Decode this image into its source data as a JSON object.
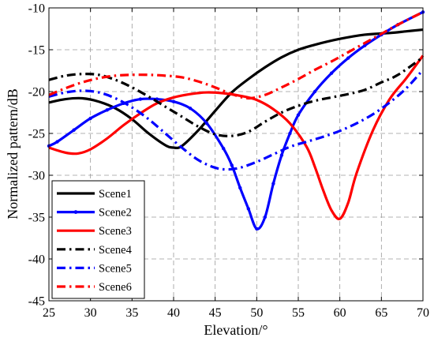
{
  "chart_data": {
    "type": "line",
    "title": "",
    "xlabel": "Elevation/°",
    "ylabel": "Normalized pattern/dB",
    "xlim": [
      25,
      70
    ],
    "ylim": [
      -45,
      -10
    ],
    "xticks": [
      25,
      30,
      35,
      40,
      45,
      50,
      55,
      60,
      65,
      70
    ],
    "yticks": [
      -45,
      -40,
      -35,
      -30,
      -25,
      -20,
      -15,
      -10
    ],
    "grid": true,
    "grid_style": "dashed",
    "legend_position": "lower-left",
    "series": [
      {
        "name": "Scene1",
        "color": "#000000",
        "line_style": "solid",
        "marker": "none",
        "x": [
          25,
          27,
          29,
          31,
          33,
          35,
          37,
          39,
          40,
          41,
          43,
          45,
          47,
          49,
          51,
          53,
          55,
          57,
          60,
          63,
          66,
          68,
          70
        ],
        "y": [
          -21.3,
          -20.9,
          -20.8,
          -21.2,
          -22.0,
          -23.3,
          -25.0,
          -26.4,
          -26.7,
          -26.5,
          -24.6,
          -22.3,
          -20.1,
          -18.5,
          -17.1,
          -15.9,
          -15.0,
          -14.4,
          -13.7,
          -13.2,
          -13.0,
          -12.8,
          -12.6
        ]
      },
      {
        "name": "Scene2",
        "color": "#0000ff",
        "line_style": "solid",
        "marker": "dot",
        "x": [
          25,
          26,
          28,
          30,
          32,
          34,
          36,
          38,
          40,
          42,
          44,
          46,
          47,
          48,
          49,
          50,
          51,
          52,
          53,
          54,
          55,
          57,
          59,
          61,
          63,
          65,
          67,
          70
        ],
        "y": [
          -26.5,
          -26.0,
          -24.6,
          -23.2,
          -22.2,
          -21.4,
          -20.9,
          -20.9,
          -21.2,
          -22.0,
          -23.8,
          -26.8,
          -28.8,
          -31.5,
          -34.0,
          -36.4,
          -35.0,
          -31.0,
          -27.6,
          -25.0,
          -22.8,
          -20.0,
          -17.8,
          -16.0,
          -14.5,
          -13.2,
          -12.0,
          -10.5
        ]
      },
      {
        "name": "Scene3",
        "color": "#ff0000",
        "line_style": "solid",
        "marker": "none",
        "x": [
          25,
          27,
          28.5,
          30,
          32,
          34,
          36,
          38,
          40,
          42,
          44,
          46,
          48,
          50,
          52,
          54,
          56,
          57,
          58,
          59,
          60,
          61,
          62,
          64,
          66,
          68,
          70
        ],
        "y": [
          -26.7,
          -27.3,
          -27.4,
          -26.9,
          -25.6,
          -24.0,
          -22.6,
          -21.4,
          -20.7,
          -20.3,
          -20.1,
          -20.2,
          -20.5,
          -21.0,
          -22.1,
          -23.8,
          -26.6,
          -29.0,
          -31.8,
          -34.2,
          -35.2,
          -33.3,
          -29.8,
          -24.6,
          -20.9,
          -18.4,
          -15.7
        ]
      },
      {
        "name": "Scene4",
        "color": "#000000",
        "line_style": "dashdot",
        "marker": "none",
        "x": [
          25,
          27,
          29,
          31,
          33,
          35,
          37,
          39,
          41,
          43,
          45,
          47,
          49,
          51,
          53,
          55,
          57,
          59,
          61,
          63,
          65,
          67,
          70
        ],
        "y": [
          -18.6,
          -18.1,
          -17.9,
          -18.0,
          -18.6,
          -19.5,
          -20.6,
          -21.8,
          -23.0,
          -24.2,
          -25.1,
          -25.3,
          -24.8,
          -23.6,
          -22.5,
          -21.7,
          -21.1,
          -20.7,
          -20.3,
          -19.8,
          -18.9,
          -18.0,
          -15.9
        ]
      },
      {
        "name": "Scene5",
        "color": "#0000ff",
        "line_style": "dashdot",
        "marker": "none",
        "x": [
          25,
          27,
          29,
          31,
          33,
          35,
          37,
          39,
          41,
          43,
          45,
          46.5,
          48,
          50,
          52,
          54,
          56,
          58,
          60,
          62,
          64,
          66,
          68,
          70
        ],
        "y": [
          -20.6,
          -20.1,
          -19.9,
          -20.1,
          -20.8,
          -21.9,
          -23.3,
          -25.0,
          -26.7,
          -28.2,
          -29.1,
          -29.3,
          -29.1,
          -28.4,
          -27.5,
          -26.6,
          -26.0,
          -25.4,
          -24.7,
          -23.8,
          -22.7,
          -21.3,
          -19.6,
          -17.4
        ]
      },
      {
        "name": "Scene6",
        "color": "#ff0000",
        "line_style": "dashdot",
        "marker": "none",
        "x": [
          25,
          27,
          29,
          31,
          33,
          35,
          37,
          39,
          41,
          43,
          45,
          47,
          49,
          51,
          53,
          55,
          57,
          59,
          61,
          63,
          65,
          67,
          70
        ],
        "y": [
          -20.4,
          -19.6,
          -18.9,
          -18.4,
          -18.1,
          -18.0,
          -18.0,
          -18.1,
          -18.3,
          -18.8,
          -19.5,
          -20.3,
          -20.8,
          -20.4,
          -19.5,
          -18.5,
          -17.4,
          -16.4,
          -15.3,
          -14.2,
          -13.1,
          -12.0,
          -10.5
        ]
      }
    ]
  }
}
